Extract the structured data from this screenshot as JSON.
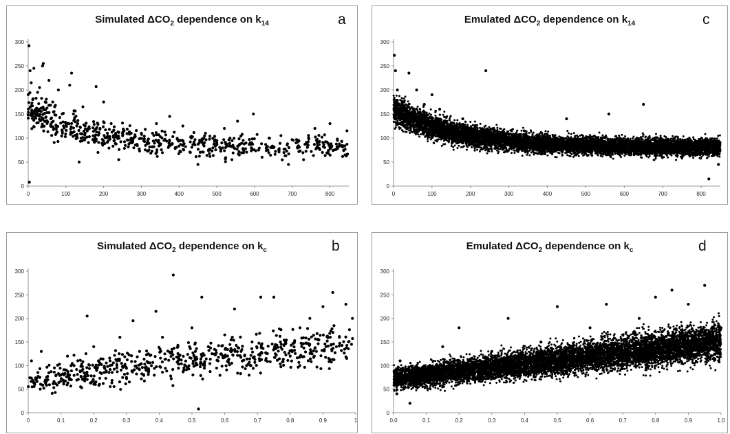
{
  "panels": [
    {
      "id": "a",
      "letter": "a",
      "title": {
        "pre": "Simulated ",
        "mid": "ΔCO",
        "sub1": "2",
        "post": " dependence on k",
        "sub2": "14"
      },
      "chart_data": {
        "type": "scatter",
        "title": "Simulated ΔCO2 dependence on k14",
        "xlabel": "",
        "ylabel": "",
        "xlim": [
          0,
          850
        ],
        "ylim": [
          0,
          300
        ],
        "xticks": [
          "0",
          "100",
          "200",
          "300",
          "400",
          "500",
          "600",
          "700",
          "800"
        ],
        "yticks": [
          "0",
          "50",
          "100",
          "150",
          "200",
          "250",
          "300"
        ],
        "trend": "decreasing",
        "points": [
          [
            2,
            292
          ],
          [
            3,
            8
          ],
          [
            5,
            240
          ],
          [
            8,
            215
          ],
          [
            12,
            180
          ],
          [
            15,
            245
          ],
          [
            20,
            160
          ],
          [
            25,
            195
          ],
          [
            30,
            205
          ],
          [
            38,
            250
          ],
          [
            40,
            255
          ],
          [
            45,
            175
          ],
          [
            55,
            220
          ],
          [
            60,
            140
          ],
          [
            65,
            175
          ],
          [
            70,
            165
          ],
          [
            80,
            200
          ],
          [
            90,
            150
          ],
          [
            100,
            130
          ],
          [
            110,
            210
          ],
          [
            115,
            235
          ],
          [
            120,
            150
          ],
          [
            130,
            100
          ],
          [
            135,
            50
          ],
          [
            145,
            165
          ],
          [
            160,
            120
          ],
          [
            180,
            207
          ],
          [
            185,
            70
          ],
          [
            200,
            175
          ],
          [
            210,
            110
          ],
          [
            220,
            130
          ],
          [
            240,
            55
          ],
          [
            250,
            110
          ],
          [
            270,
            90
          ],
          [
            300,
            110
          ],
          [
            320,
            75
          ],
          [
            340,
            130
          ],
          [
            360,
            95
          ],
          [
            375,
            145
          ],
          [
            390,
            80
          ],
          [
            410,
            125
          ],
          [
            430,
            70
          ],
          [
            450,
            45
          ],
          [
            470,
            110
          ],
          [
            500,
            90
          ],
          [
            520,
            120
          ],
          [
            540,
            55
          ],
          [
            555,
            135
          ],
          [
            570,
            95
          ],
          [
            597,
            150
          ],
          [
            620,
            60
          ],
          [
            650,
            80
          ],
          [
            670,
            105
          ],
          [
            690,
            45
          ],
          [
            710,
            90
          ],
          [
            730,
            55
          ],
          [
            760,
            120
          ],
          [
            780,
            70
          ],
          [
            800,
            130
          ],
          [
            820,
            95
          ],
          [
            840,
            65
          ],
          [
            845,
            115
          ]
        ]
      }
    },
    {
      "id": "c",
      "letter": "c",
      "title": {
        "pre": "Emulated ",
        "mid": "ΔCO",
        "sub1": "2",
        "post": " dependence on k",
        "sub2": "14"
      },
      "chart_data": {
        "type": "scatter",
        "title": "Emulated ΔCO2 dependence on k14",
        "xlabel": "",
        "ylabel": "",
        "xlim": [
          0,
          850
        ],
        "ylim": [
          0,
          300
        ],
        "xticks": [
          "0",
          "100",
          "200",
          "300",
          "400",
          "500",
          "600",
          "700",
          "800"
        ],
        "yticks": [
          "0",
          "50",
          "100",
          "150",
          "200",
          "250",
          "300"
        ],
        "trend": "decreasing",
        "points": [
          [
            2,
            272
          ],
          [
            5,
            240
          ],
          [
            10,
            200
          ],
          [
            20,
            150
          ],
          [
            40,
            235
          ],
          [
            60,
            200
          ],
          [
            80,
            170
          ],
          [
            100,
            190
          ],
          [
            120,
            160
          ],
          [
            150,
            130
          ],
          [
            180,
            140
          ],
          [
            210,
            120
          ],
          [
            240,
            240
          ],
          [
            260,
            110
          ],
          [
            300,
            100
          ],
          [
            340,
            115
          ],
          [
            400,
            90
          ],
          [
            450,
            140
          ],
          [
            500,
            85
          ],
          [
            560,
            150
          ],
          [
            600,
            80
          ],
          [
            650,
            170
          ],
          [
            700,
            80
          ],
          [
            750,
            60
          ],
          [
            800,
            70
          ],
          [
            820,
            15
          ],
          [
            845,
            45
          ]
        ]
      }
    },
    {
      "id": "b",
      "letter": "b",
      "title": {
        "pre": "Simulated ",
        "mid": "ΔCO",
        "sub1": "2",
        "post": " dependence on k",
        "sub2": "c"
      },
      "chart_data": {
        "type": "scatter",
        "title": "Simulated ΔCO2 dependence on kc",
        "xlabel": "",
        "ylabel": "",
        "xlim": [
          0,
          1
        ],
        "ylim": [
          0,
          300
        ],
        "xticks": [
          "0",
          "0.1",
          "0.2",
          "0.3",
          "0.4",
          "0.5",
          "0.6",
          "0.7",
          "0.8",
          "0.9",
          "1"
        ],
        "yticks": [
          "0",
          "50",
          "100",
          "150",
          "200",
          "250",
          "300"
        ],
        "trend": "increasing",
        "points": [
          [
            0.01,
            110
          ],
          [
            0.02,
            60
          ],
          [
            0.04,
            130
          ],
          [
            0.06,
            70
          ],
          [
            0.08,
            95
          ],
          [
            0.1,
            80
          ],
          [
            0.12,
            120
          ],
          [
            0.14,
            100
          ],
          [
            0.16,
            55
          ],
          [
            0.18,
            205
          ],
          [
            0.2,
            140
          ],
          [
            0.22,
            85
          ],
          [
            0.25,
            110
          ],
          [
            0.28,
            160
          ],
          [
            0.3,
            75
          ],
          [
            0.32,
            195
          ],
          [
            0.34,
            130
          ],
          [
            0.36,
            90
          ],
          [
            0.39,
            215
          ],
          [
            0.41,
            160
          ],
          [
            0.443,
            292
          ],
          [
            0.46,
            120
          ],
          [
            0.48,
            100
          ],
          [
            0.5,
            180
          ],
          [
            0.52,
            8
          ],
          [
            0.53,
            245
          ],
          [
            0.55,
            140
          ],
          [
            0.58,
            110
          ],
          [
            0.6,
            165
          ],
          [
            0.63,
            220
          ],
          [
            0.65,
            130
          ],
          [
            0.68,
            100
          ],
          [
            0.71,
            245
          ],
          [
            0.75,
            245
          ],
          [
            0.77,
            150
          ],
          [
            0.8,
            120
          ],
          [
            0.83,
            180
          ],
          [
            0.86,
            200
          ],
          [
            0.88,
            130
          ],
          [
            0.9,
            225
          ],
          [
            0.93,
            255
          ],
          [
            0.95,
            160
          ],
          [
            0.97,
            230
          ],
          [
            0.99,
            200
          ]
        ]
      }
    },
    {
      "id": "d",
      "letter": "d",
      "title": {
        "pre": "Emulated ",
        "mid": "ΔCO",
        "sub1": "2",
        "post": " dependence on k",
        "sub2": "c"
      },
      "chart_data": {
        "type": "scatter",
        "title": "Emulated ΔCO2 dependence on kc",
        "xlabel": "",
        "ylabel": "",
        "xlim": [
          0,
          1
        ],
        "ylim": [
          0,
          300
        ],
        "xticks": [
          "0.0",
          "0.1",
          "0.2",
          "0.3",
          "0.4",
          "0.5",
          "0.6",
          "0.7",
          "0.8",
          "0.9",
          "1.0"
        ],
        "yticks": [
          "0",
          "50",
          "100",
          "150",
          "200",
          "250",
          "300"
        ],
        "trend": "increasing",
        "points": [
          [
            0.01,
            40
          ],
          [
            0.02,
            110
          ],
          [
            0.05,
            20
          ],
          [
            0.1,
            90
          ],
          [
            0.15,
            140
          ],
          [
            0.2,
            180
          ],
          [
            0.25,
            100
          ],
          [
            0.3,
            130
          ],
          [
            0.35,
            200
          ],
          [
            0.4,
            110
          ],
          [
            0.45,
            150
          ],
          [
            0.5,
            225
          ],
          [
            0.55,
            130
          ],
          [
            0.6,
            180
          ],
          [
            0.65,
            230
          ],
          [
            0.7,
            120
          ],
          [
            0.75,
            200
          ],
          [
            0.8,
            245
          ],
          [
            0.85,
            260
          ],
          [
            0.9,
            230
          ],
          [
            0.95,
            270
          ],
          [
            1.0,
            180
          ]
        ]
      }
    }
  ]
}
